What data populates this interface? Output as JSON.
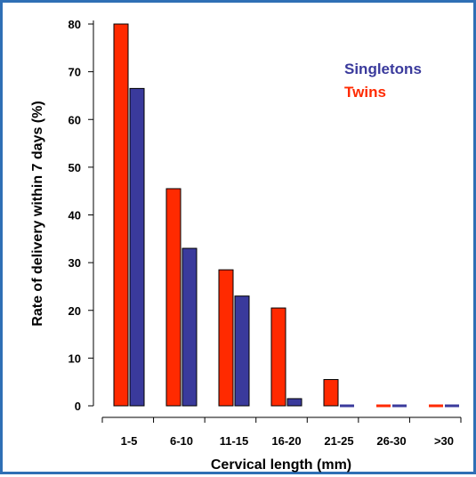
{
  "chart_data": {
    "type": "bar",
    "xlabel": "Cervical length (mm)",
    "ylabel": "Rate of delivery within 7 days (%)",
    "categories": [
      "1-5",
      "6-10",
      "11-15",
      "16-20",
      "21-25",
      "26-30",
      ">30"
    ],
    "ylim": [
      0,
      80
    ],
    "yticks": [
      0,
      10,
      20,
      30,
      40,
      50,
      60,
      70,
      80
    ],
    "series": [
      {
        "name": "Twins",
        "color": "#ff2a00",
        "values": [
          80,
          45.5,
          28.5,
          20.5,
          5.5,
          0,
          0
        ]
      },
      {
        "name": "Singletons",
        "color": "#3a3a9c",
        "values": [
          66.5,
          33,
          23,
          1.5,
          0,
          0,
          0
        ]
      }
    ],
    "legend": {
      "position": "top-right",
      "order": [
        "Singletons",
        "Twins"
      ]
    },
    "grid": false
  }
}
